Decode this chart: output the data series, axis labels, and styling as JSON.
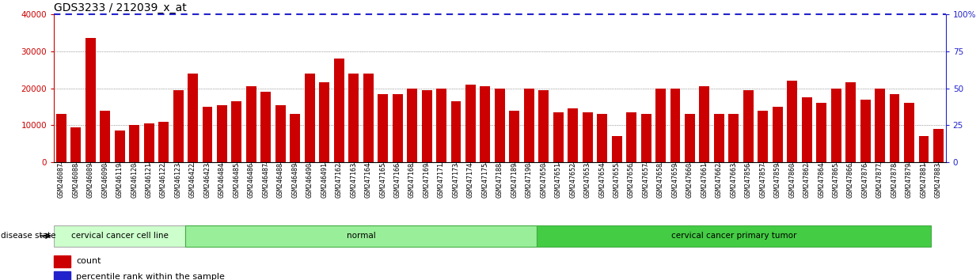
{
  "title": "GDS3233 / 212039_x_at",
  "categories": [
    "GSM246087",
    "GSM246088",
    "GSM246089",
    "GSM246090",
    "GSM246119",
    "GSM246120",
    "GSM246121",
    "GSM246122",
    "GSM246123",
    "GSM246422",
    "GSM246423",
    "GSM246484",
    "GSM246485",
    "GSM246486",
    "GSM246487",
    "GSM246488",
    "GSM246489",
    "GSM246490",
    "GSM246491",
    "GSM247162",
    "GSM247163",
    "GSM247164",
    "GSM247165",
    "GSM247166",
    "GSM247168",
    "GSM247169",
    "GSM247171",
    "GSM247173",
    "GSM247174",
    "GSM247175",
    "GSM247188",
    "GSM247189",
    "GSM247190",
    "GSM247650",
    "GSM247651",
    "GSM247652",
    "GSM247653",
    "GSM247654",
    "GSM247655",
    "GSM247656",
    "GSM247657",
    "GSM247658",
    "GSM247659",
    "GSM247660",
    "GSM247661",
    "GSM247662",
    "GSM247663",
    "GSM247856",
    "GSM247857",
    "GSM247859",
    "GSM247860",
    "GSM247862",
    "GSM247864",
    "GSM247865",
    "GSM247866",
    "GSM247876",
    "GSM247877",
    "GSM247878",
    "GSM247879",
    "GSM247881",
    "GSM247883"
  ],
  "values": [
    13000,
    9500,
    33500,
    14000,
    8500,
    10000,
    10500,
    11000,
    19500,
    24000,
    15000,
    15500,
    16500,
    20500,
    19000,
    15500,
    13000,
    24000,
    21500,
    28000,
    24000,
    24000,
    18500,
    18500,
    20000,
    19500,
    20000,
    16500,
    21000,
    20500,
    20000,
    14000,
    20000,
    19500,
    13500,
    14500,
    13500,
    13000,
    7000,
    13500,
    13000,
    20000,
    20000,
    13000,
    20500,
    13000,
    13000,
    19500,
    14000,
    15000,
    22000,
    17500,
    16000,
    20000,
    21500,
    17000,
    20000,
    18500,
    16000,
    7000,
    9000
  ],
  "disease_groups": [
    {
      "label": "cervical cancer cell line",
      "start": 0,
      "end": 9,
      "color": "#ccffcc",
      "border": "#aaaaaa"
    },
    {
      "label": "normal",
      "start": 9,
      "end": 33,
      "color": "#99ee99",
      "border": "#44aa44"
    },
    {
      "label": "cervical cancer primary tumor",
      "start": 33,
      "end": 60,
      "color": "#44cc44",
      "border": "#44aa44"
    }
  ],
  "bar_color": "#cc0000",
  "percentile_color": "#2222cc",
  "ylim_left": [
    0,
    40000
  ],
  "ylim_right": [
    0,
    100
  ],
  "yticks_left": [
    0,
    10000,
    20000,
    30000,
    40000
  ],
  "yticks_right": [
    0,
    25,
    50,
    75,
    100
  ],
  "ytick_labels_left": [
    "0",
    "10000",
    "20000",
    "30000",
    "40000"
  ],
  "ytick_labels_right": [
    "0",
    "25",
    "50",
    "75",
    "100%"
  ],
  "grid_yticks": [
    10000,
    20000,
    30000
  ],
  "grid_color": "#555555",
  "bg_color": "#ffffff",
  "bar_axis_color": "#cc0000",
  "title_fontsize": 10,
  "tick_fontsize": 6,
  "label_fontsize": 7.5,
  "disease_label": "disease state"
}
